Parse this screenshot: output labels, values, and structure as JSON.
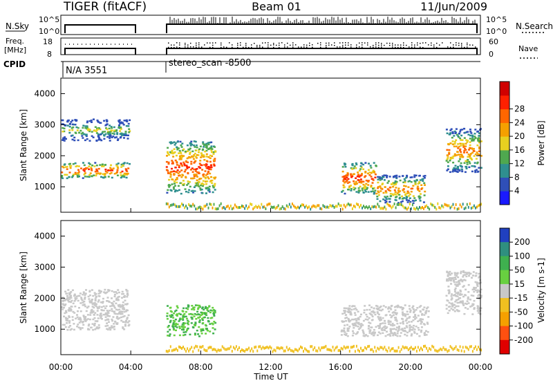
{
  "header": {
    "radar": "TIGER (fitACF)",
    "beam": "Beam 01",
    "date": "11/Jun/2009"
  },
  "summary_panels": {
    "nsky_label": "N.Sky",
    "nsky_ticks": [
      "10^5",
      "10^0"
    ],
    "nsearch_label": "N.Search",
    "nsearch_ticks": [
      "10^5",
      "10^0"
    ],
    "freq_label_1": "Freq.",
    "freq_label_2": "[MHz]",
    "freq_ticks": [
      "18",
      "8"
    ],
    "nave_label": "Nave",
    "nave_ticks": [
      "60",
      "0"
    ],
    "cpid_label": "CPID",
    "cpid_segments": [
      "N/A 3551",
      "stereo_scan -8500"
    ]
  },
  "chart_data": [
    {
      "type": "heatmap",
      "title": "",
      "parameter": "Power",
      "ylabel": "Slant Range [km]",
      "xlabel": "",
      "x_range_hours": [
        0,
        24
      ],
      "ylim": [
        180,
        4500
      ],
      "yticks": [
        1000,
        2000,
        3000,
        4000
      ],
      "colorbar": {
        "label": "Power [dB]",
        "ticks": [
          "4",
          "8",
          "12",
          "16",
          "20",
          "24",
          "28"
        ],
        "colors": [
          "#1a1aff",
          "#2f4fb8",
          "#2f8f8f",
          "#4fa84f",
          "#e8d020",
          "#f5a000",
          "#ff6600",
          "#ff2000",
          "#d00000"
        ]
      },
      "features": [
        {
          "t0": 0.0,
          "t1": 3.9,
          "r0": 1300,
          "r1": 1800,
          "level": 28
        },
        {
          "t0": 0.0,
          "t1": 3.9,
          "r0": 2500,
          "r1": 3200,
          "level": 16
        },
        {
          "t0": 6.0,
          "t1": 8.8,
          "r0": 800,
          "r1": 2500,
          "level": 28
        },
        {
          "t0": 16.0,
          "t1": 18.0,
          "r0": 800,
          "r1": 1800,
          "level": 28
        },
        {
          "t0": 18.0,
          "t1": 20.8,
          "r0": 500,
          "r1": 1400,
          "level": 24
        },
        {
          "t0": 22.0,
          "t1": 24.0,
          "r0": 1500,
          "r1": 2900,
          "level": 24
        }
      ]
    },
    {
      "type": "heatmap",
      "title": "",
      "parameter": "Velocity",
      "ylabel": "Slant Range [km]",
      "xlabel": "Time UT",
      "x_range_hours": [
        0,
        24
      ],
      "ylim": [
        180,
        4500
      ],
      "yticks": [
        1000,
        2000,
        3000,
        4000
      ],
      "xticks": [
        "00:00",
        "04:00",
        "08:00",
        "12:00",
        "16:00",
        "20:00",
        "00:00"
      ],
      "colorbar": {
        "label": "Velocity [m s-1]",
        "ticks": [
          "200",
          "100",
          "50",
          "15",
          "-15",
          "-50",
          "-100",
          "-200"
        ],
        "colors": [
          "#2040c0",
          "#2f8f7f",
          "#3fb04f",
          "#68d040",
          "#c8c8c8",
          "#f0c020",
          "#f5a000",
          "#ff5010",
          "#e00000"
        ]
      },
      "features": [
        {
          "t0": 0.0,
          "t1": 3.9,
          "r0": 1000,
          "r1": 2300,
          "level": 0
        },
        {
          "t0": 6.0,
          "t1": 8.8,
          "r0": 800,
          "r1": 1800,
          "level": 50
        },
        {
          "t0": 16.0,
          "t1": 21.0,
          "r0": 800,
          "r1": 1800,
          "level": 0
        },
        {
          "t0": 22.0,
          "t1": 24.0,
          "r0": 1500,
          "r1": 2900,
          "level": 0
        }
      ]
    }
  ]
}
